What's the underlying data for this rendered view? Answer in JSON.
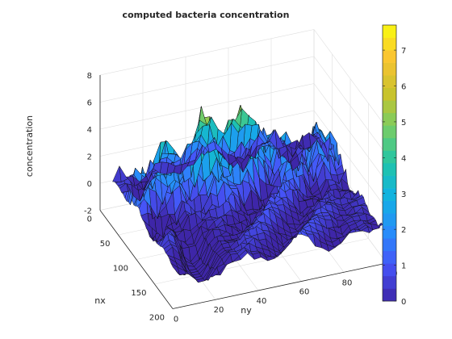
{
  "chart_data": {
    "type": "surface",
    "title": "computed bacteria concentration",
    "xlabel": "nx",
    "ylabel": "ny",
    "zlabel": "concentration",
    "xlim": [
      0,
      200
    ],
    "ylim": [
      0,
      100
    ],
    "zlim": [
      -2,
      8
    ],
    "x_ticks": [
      "0",
      "50",
      "100",
      "150",
      "200"
    ],
    "y_ticks": [
      "0",
      "20",
      "40",
      "60",
      "80",
      "100"
    ],
    "z_ticks": [
      "-2",
      "0",
      "2",
      "4",
      "6",
      "8"
    ],
    "colorbar": {
      "ticks": [
        "0",
        "1",
        "2",
        "3",
        "4",
        "5",
        "6",
        "7"
      ],
      "limits": [
        0,
        7.7
      ],
      "colormap": "parula"
    },
    "grid": true,
    "description_of_surface": "Noisy ridges rising toward low nx; largest peaks (~7.4) near nx 40-60, ny 30-60; a steep negative dip to about -2 along ny ~ 15-25 near nx 150"
  }
}
